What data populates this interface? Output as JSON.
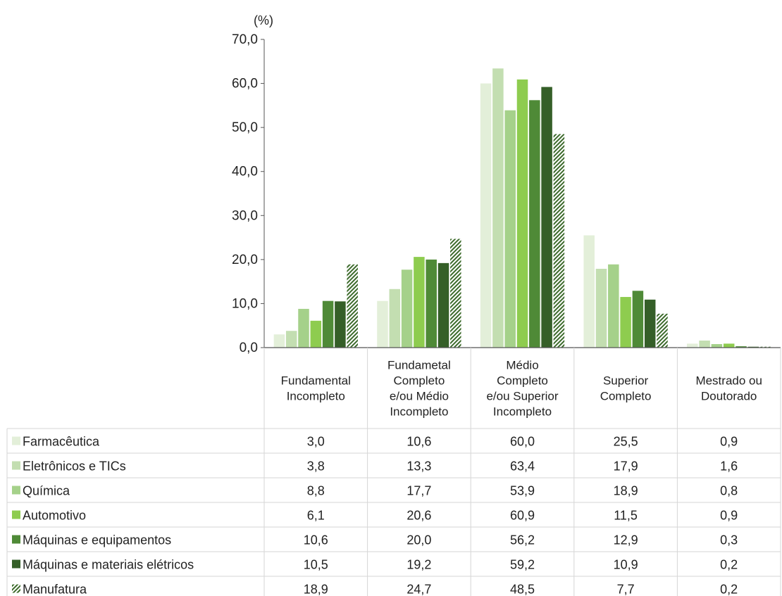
{
  "chart_data": {
    "type": "bar",
    "unit_label": "(%)",
    "y_ticks": [
      "0,0",
      "10,0",
      "20,0",
      "30,0",
      "40,0",
      "50,0",
      "60,0",
      "70,0"
    ],
    "ylim": [
      0,
      70
    ],
    "grid": false,
    "legend_placement": "data-table-left",
    "categories": [
      [
        "Fundamental",
        "Incompleto"
      ],
      [
        "Fundametal",
        "Completo",
        "e/ou Médio",
        "Incompleto"
      ],
      [
        "Médio",
        "Completo",
        "e/ou Superior",
        "Incompleto"
      ],
      [
        "Superior",
        "Completo"
      ],
      [
        "Mestrado ou",
        "Doutorado"
      ]
    ],
    "series": [
      {
        "name": "Farmacêutica",
        "color": "#e3efd9",
        "hatched": false,
        "values": [
          3.0,
          10.6,
          60.0,
          25.5,
          0.9
        ],
        "labels": [
          "3,0",
          "10,6",
          "60,0",
          "25,5",
          "0,9"
        ]
      },
      {
        "name": "Eletrônicos e TICs",
        "color": "#c3deb1",
        "hatched": false,
        "values": [
          3.8,
          13.3,
          63.4,
          17.9,
          1.6
        ],
        "labels": [
          "3,8",
          "13,3",
          "63,4",
          "17,9",
          "1,6"
        ]
      },
      {
        "name": "Química",
        "color": "#a5d18a",
        "hatched": false,
        "values": [
          8.8,
          17.7,
          53.9,
          18.9,
          0.8
        ],
        "labels": [
          "8,8",
          "17,7",
          "53,9",
          "18,9",
          "0,8"
        ]
      },
      {
        "name": "Automotivo",
        "color": "#8ecc4f",
        "hatched": false,
        "values": [
          6.1,
          20.6,
          60.9,
          11.5,
          0.9
        ],
        "labels": [
          "6,1",
          "20,6",
          "60,9",
          "11,5",
          "0,9"
        ]
      },
      {
        "name": "Máquinas e equipamentos",
        "color": "#4f8a37",
        "hatched": false,
        "values": [
          10.6,
          20.0,
          56.2,
          12.9,
          0.3
        ],
        "labels": [
          "10,6",
          "20,0",
          "56,2",
          "12,9",
          "0,3"
        ]
      },
      {
        "name": "Máquinas e materiais elétricos",
        "color": "#355f28",
        "hatched": false,
        "values": [
          10.5,
          19.2,
          59.2,
          10.9,
          0.2
        ],
        "labels": [
          "10,5",
          "19,2",
          "59,2",
          "10,9",
          "0,2"
        ]
      },
      {
        "name": "Manufatura",
        "color": "#3d6b2c",
        "hatched": true,
        "values": [
          18.9,
          24.7,
          48.5,
          7.7,
          0.2
        ],
        "labels": [
          "18,9",
          "24,7",
          "48,5",
          "7,7",
          "0,2"
        ]
      }
    ]
  }
}
